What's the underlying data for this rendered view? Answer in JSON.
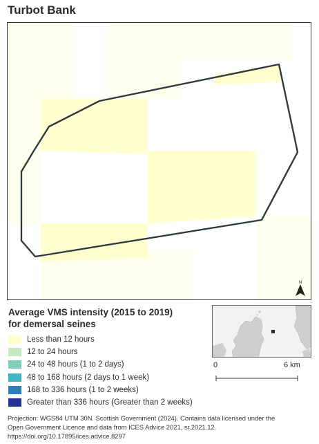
{
  "map": {
    "title": "Turbot Bank",
    "north_arrow_label": "N"
  },
  "legend": {
    "title_line1": "Average VMS intensity (2015 to 2019)",
    "title_line2": "for demersal seines",
    "items": [
      {
        "label": "Less than 12 hours",
        "color": "#ffffcc"
      },
      {
        "label": "12 to 24 hours",
        "color": "#c7e9c0"
      },
      {
        "label": "24 to 48 hours (1 to 2 days)",
        "color": "#7fcdbb"
      },
      {
        "label": "48 to 168 hours (2 days to 1 week)",
        "color": "#41b6c4"
      },
      {
        "label": "168 to 336 hours (1 to 2 weeks)",
        "color": "#2c7fb8"
      },
      {
        "label": "Greater than 336 hours (Greater than 2 weeks)",
        "color": "#253494"
      }
    ]
  },
  "scale_bar": {
    "start_label": "0",
    "end_label": "6 km"
  },
  "credits": {
    "line1": "Projection: WGS84 UTM 30N. Scottish Government (2024). Contains data licensed under the",
    "line2": "Open Government Licence and data from ICES Advice 2021, sr.2021.12.",
    "line3": "https://doi.org/10.17895/ices.advice.8297"
  },
  "colors": {
    "boundary": "#2f3a40",
    "inset_land": "#cfcfcf",
    "inset_sea": "#f2f2f2",
    "site_marker": "#1f2a44"
  }
}
